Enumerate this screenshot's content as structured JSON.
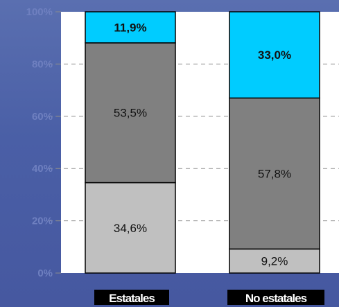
{
  "chart_data": {
    "type": "bar",
    "stacked": true,
    "categories": [
      "Estatales",
      "No estatales"
    ],
    "series": [
      {
        "values": [
          34.6,
          9.2
        ],
        "labels": [
          "34,6%",
          "9,2%"
        ],
        "color": "#c0c0c0",
        "label_bold": false
      },
      {
        "values": [
          53.5,
          57.8
        ],
        "labels": [
          "53,5%",
          "57,8%"
        ],
        "color": "#808080",
        "label_bold": false
      },
      {
        "values": [
          11.9,
          33.0
        ],
        "labels": [
          "11,9%",
          "33,0%"
        ],
        "color": "#00ccff",
        "label_bold": true
      }
    ],
    "ylim": [
      0,
      100
    ],
    "yticks": [
      0,
      20,
      40,
      60,
      80,
      100
    ],
    "ytick_labels": [
      "0%",
      "20%",
      "40%",
      "60%",
      "80%",
      "100%"
    ],
    "grid": true,
    "plot_background": "#ffffff",
    "page_background": "#4a5fa6",
    "category_label_background": "#000000"
  }
}
